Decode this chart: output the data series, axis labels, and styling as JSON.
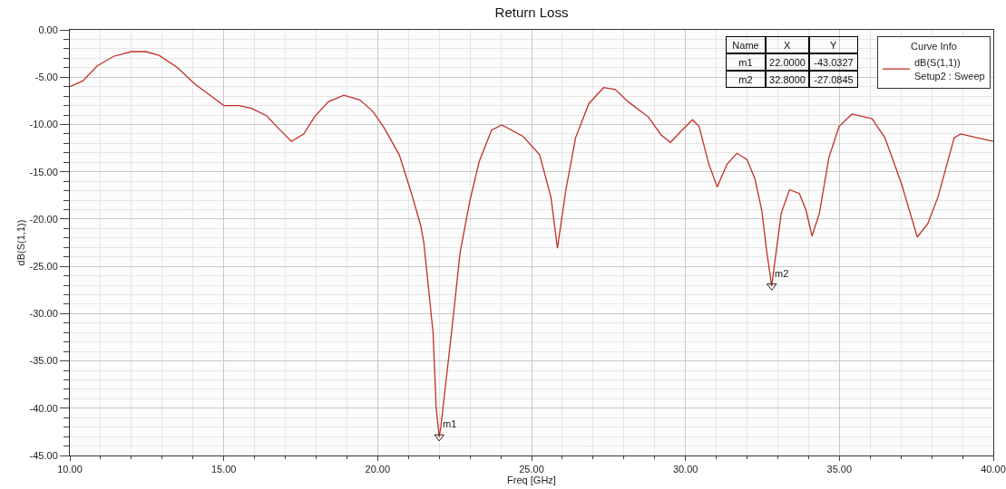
{
  "chart_data": {
    "type": "line",
    "title": "Return Loss",
    "xlabel": "Freq [GHz]",
    "ylabel": "dB(S(1,1))",
    "legend_title": "Curve Info",
    "legend": "top right",
    "grid": true,
    "marker": "none",
    "line_style": "solid",
    "xlim": [
      10,
      40
    ],
    "xticks": [
      {
        "value": 10,
        "label": "10.00"
      },
      {
        "value": 15,
        "label": "15.00"
      },
      {
        "value": 20,
        "label": "20.00"
      },
      {
        "value": 25,
        "label": "25.00"
      },
      {
        "value": 30,
        "label": "30.00"
      },
      {
        "value": 35,
        "label": "35.00"
      },
      {
        "value": 40,
        "label": "40.00"
      }
    ],
    "ylim": [
      -45,
      0
    ],
    "yticks": [
      {
        "value": 0,
        "label": "0.00"
      },
      {
        "value": -5,
        "label": "-5.00"
      },
      {
        "value": -10,
        "label": "-10.00"
      },
      {
        "value": -15,
        "label": "-15.00"
      },
      {
        "value": -20,
        "label": "-20.00"
      },
      {
        "value": -25,
        "label": "-25.00"
      },
      {
        "value": -30,
        "label": "-30.00"
      },
      {
        "value": -35,
        "label": "-35.00"
      },
      {
        "value": -40,
        "label": "-40.00"
      },
      {
        "value": -45,
        "label": "-45.00"
      }
    ],
    "series": [
      {
        "name": "dB(S(1,1))\nSetup2 : Sweep",
        "color": "#c0302a",
        "x": [
          10,
          10.42,
          10.89,
          11.42,
          12,
          12.47,
          12.9,
          13.5,
          14.05,
          14.47,
          15,
          15.5,
          15.9,
          16.4,
          16.8,
          17.2,
          17.6,
          17.97,
          18.4,
          18.9,
          19.42,
          19.84,
          20.2,
          20.7,
          21.1,
          21.4,
          21.5,
          21.8,
          21.9,
          22,
          22.05,
          22.4,
          22.68,
          23,
          23.3,
          23.7,
          24.03,
          24.72,
          25.26,
          25.63,
          25.84,
          26.11,
          26.43,
          26.86,
          27.34,
          27.72,
          28.14,
          28.79,
          29.21,
          29.51,
          29.86,
          30.23,
          30.44,
          30.76,
          31.03,
          31.35,
          31.67,
          32,
          32.26,
          32.48,
          32.63,
          32.8,
          33.11,
          33.38,
          33.7,
          33.92,
          34.11,
          34.35,
          34.66,
          34.99,
          35.41,
          36.06,
          36.48,
          37.02,
          37.53,
          37.87,
          38.2,
          38.73,
          38.94,
          39.48,
          40
        ],
        "values": [
          -6,
          -5.4,
          -3.8,
          -2.8,
          -2.3,
          -2.3,
          -2.7,
          -4,
          -5.7,
          -6.7,
          -8,
          -8,
          -8.3,
          -9.1,
          -10.5,
          -11.8,
          -11,
          -9.1,
          -7.6,
          -6.9,
          -7.4,
          -8.6,
          -10.3,
          -13.2,
          -17.3,
          -20.7,
          -22.5,
          -32,
          -40,
          -43.0327,
          -42,
          -32,
          -23.5,
          -18,
          -13.9,
          -10.6,
          -10.05,
          -11.25,
          -13.2,
          -17.7,
          -23.1,
          -17,
          -11.4,
          -7.8,
          -6.1,
          -6.3,
          -7.6,
          -9.2,
          -11.1,
          -11.9,
          -10.7,
          -9.5,
          -10.2,
          -14.2,
          -16.6,
          -14.2,
          -13.05,
          -13.7,
          -15.8,
          -19.1,
          -23.2,
          -27.0845,
          -19.4,
          -16.9,
          -17.3,
          -19.1,
          -21.8,
          -19.4,
          -13.5,
          -10.2,
          -8.9,
          -9.4,
          -11.4,
          -16.3,
          -21.9,
          -20.5,
          -17.7,
          -11.4,
          -11,
          -11.4,
          -11.8
        ]
      }
    ],
    "annotations": [
      {
        "text": "m1",
        "x": 22,
        "y": -43.0327
      },
      {
        "text": "m2",
        "x": 32.8,
        "y": -27.0845
      },
      "Name",
      "X",
      "Y",
      "m1",
      "22.0000",
      "-43.0327",
      "m2",
      "32.8000",
      "-27.0845"
    ]
  }
}
